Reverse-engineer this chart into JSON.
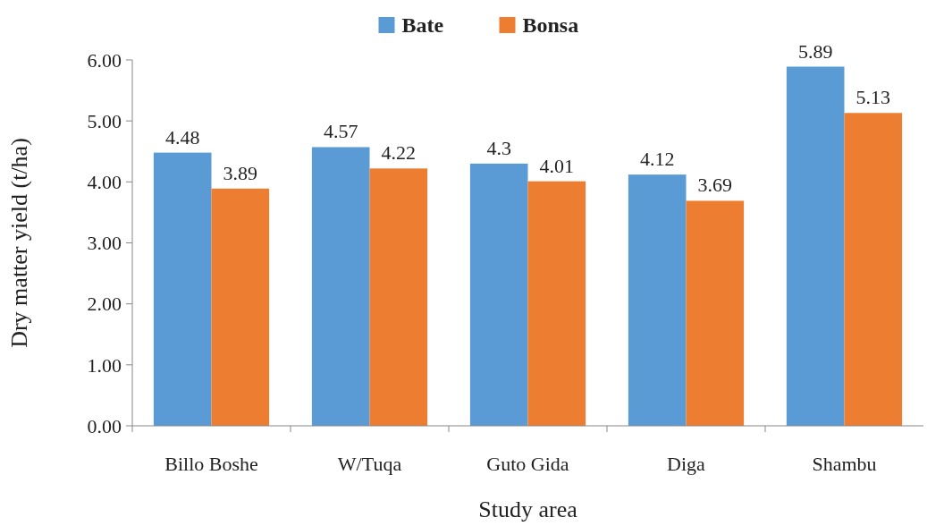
{
  "chart_data": {
    "type": "bar",
    "xlabel": "Study area",
    "ylabel": "Dry matter yield (t/ha)",
    "categories": [
      "Billo Boshe",
      "W/Tuqa",
      "Guto Gida",
      "Diga",
      "Shambu"
    ],
    "series": [
      {
        "name": "Bate",
        "color": "#5b9bd5",
        "values": [
          4.48,
          4.57,
          4.3,
          4.12,
          5.89
        ]
      },
      {
        "name": "Bonsa",
        "color": "#ed7d31",
        "values": [
          3.89,
          4.22,
          4.01,
          3.69,
          5.13
        ]
      }
    ],
    "ylim": [
      0,
      6
    ],
    "yticks": [
      {
        "value": 0,
        "label": "0.00"
      },
      {
        "value": 1,
        "label": "1.00"
      },
      {
        "value": 2,
        "label": "2.00"
      },
      {
        "value": 3,
        "label": "3.00"
      },
      {
        "value": 4,
        "label": "4.00"
      },
      {
        "value": 5,
        "label": "5.00"
      },
      {
        "value": 6,
        "label": "6.00"
      }
    ],
    "data_labels": true,
    "grid": false,
    "legend": "top"
  }
}
